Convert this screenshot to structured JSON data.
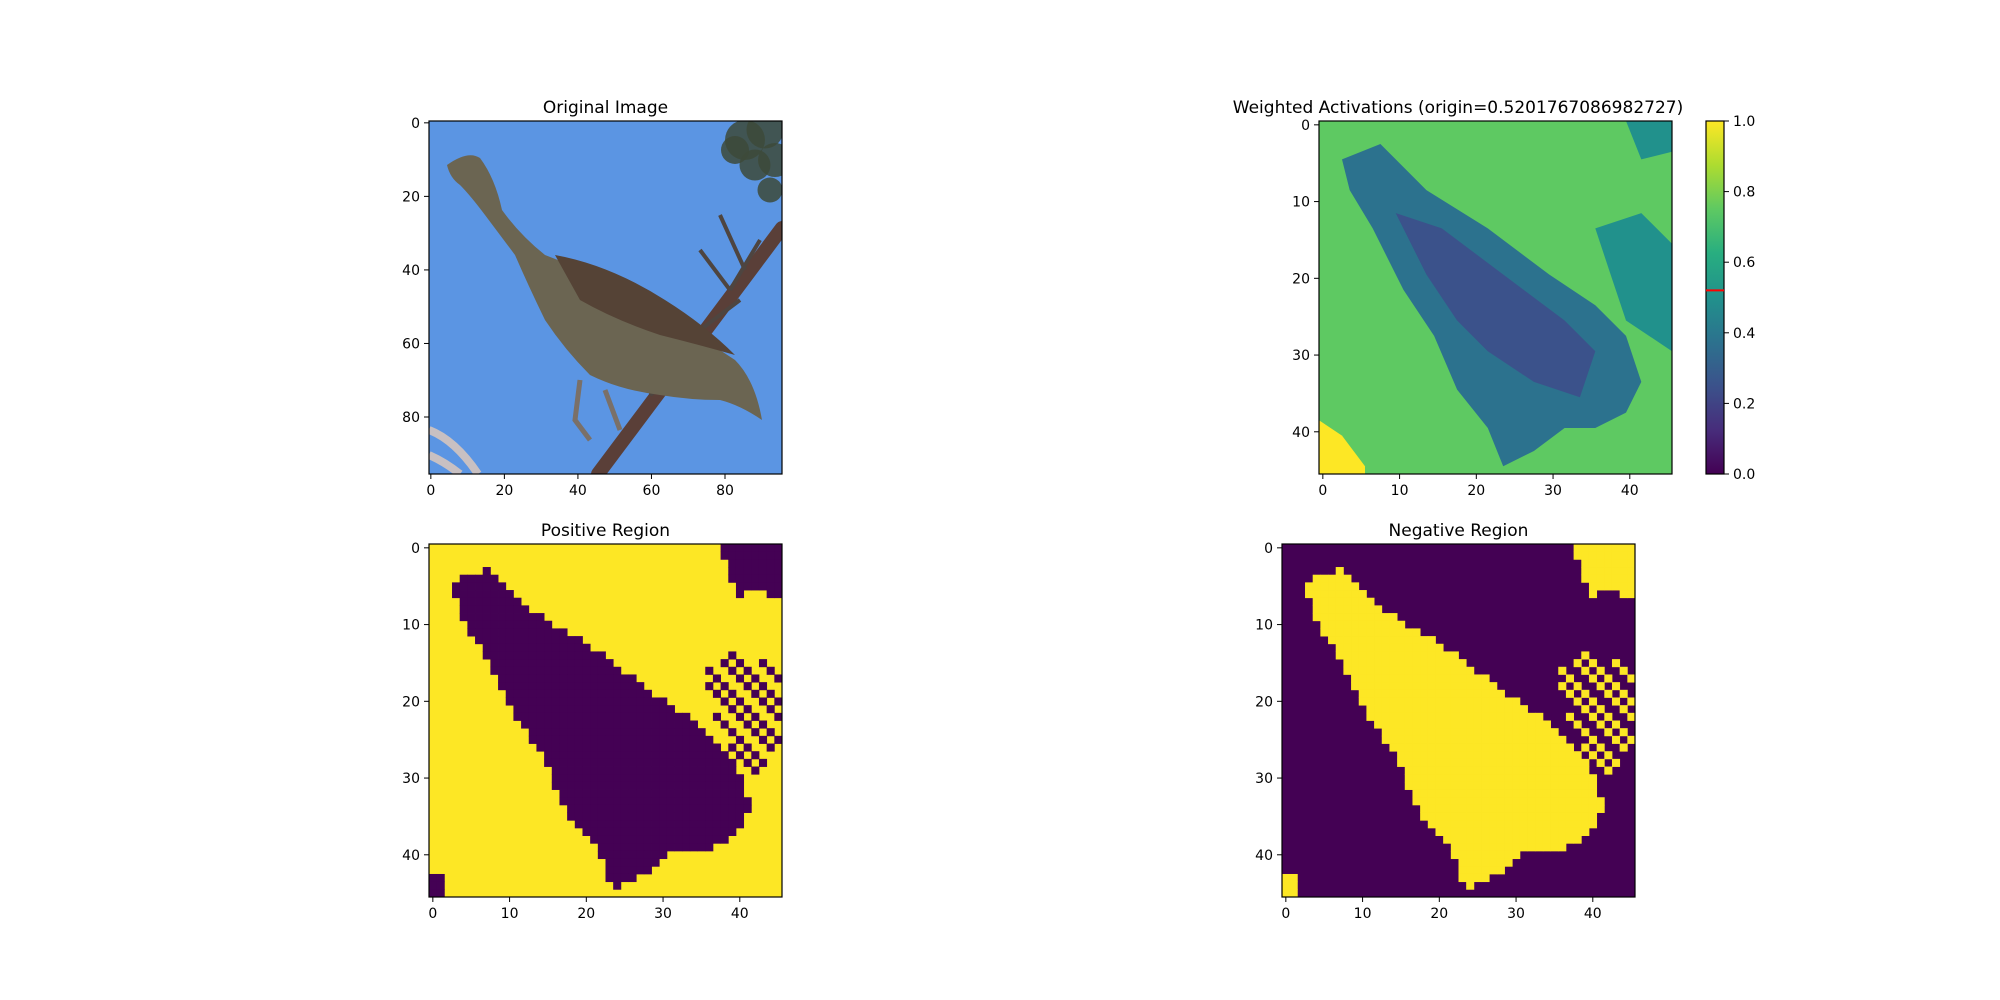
{
  "chart_data": [
    {
      "type": "image",
      "title": "Original Image",
      "xticks": [
        0,
        20,
        40,
        60,
        80
      ],
      "yticks": [
        0,
        20,
        40,
        60,
        80
      ],
      "xlim": [
        -0.5,
        95.5
      ],
      "ylim": [
        95.5,
        -0.5
      ],
      "sky_color": "#5b95e3",
      "bird_color": "#6b6552",
      "branch_color": "#5a3f38"
    },
    {
      "type": "heatmap",
      "title": "Weighted Activations (origin=0.5201767086982727)",
      "xticks": [
        0,
        10,
        20,
        30,
        40
      ],
      "yticks": [
        0,
        10,
        20,
        30,
        40
      ],
      "xlim": [
        -0.5,
        45.5
      ],
      "ylim": [
        45.5,
        -0.5
      ],
      "colormap": "viridis",
      "colorbar": {
        "min": 0,
        "max": 1,
        "ticks": [
          "0.0",
          "0.2",
          "0.4",
          "0.6",
          "0.8",
          "1.0"
        ],
        "origin": 0.5201767086982727,
        "origin_color": "#ff0000"
      },
      "background_value": 0.72,
      "subject_value": 0.42
    },
    {
      "type": "heatmap",
      "title": "Positive Region",
      "xticks": [
        0,
        10,
        20,
        30,
        40
      ],
      "yticks": [
        0,
        10,
        20,
        30,
        40
      ],
      "xlim": [
        -0.5,
        45.5
      ],
      "ylim": [
        45.5,
        -0.5
      ],
      "colormap": "binary-viridis",
      "on_color": "#fde725",
      "off_color": "#440154"
    },
    {
      "type": "heatmap",
      "title": "Negative Region",
      "xticks": [
        0,
        10,
        20,
        30,
        40
      ],
      "yticks": [
        0,
        10,
        20,
        30,
        40
      ],
      "xlim": [
        -0.5,
        45.5
      ],
      "ylim": [
        45.5,
        -0.5
      ],
      "colormap": "binary-viridis",
      "on_color": "#fde725",
      "off_color": "#440154"
    }
  ]
}
